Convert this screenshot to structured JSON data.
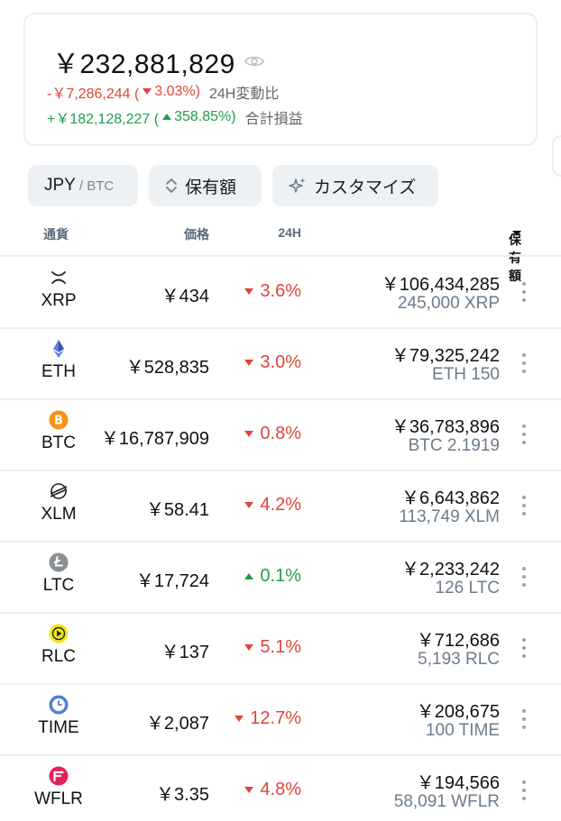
{
  "summary": {
    "total": "￥232,881,829",
    "change_24h": {
      "amount": "-￥7,286,244 (",
      "pct": "3.03%)",
      "label": "24H変動比"
    },
    "total_pl": {
      "amount": "+￥182,128,227 (",
      "pct": "358.85%)",
      "label": "合計損益"
    },
    "icon": "eye-icon"
  },
  "chips": {
    "currency_main": "JPY",
    "currency_sep": "/ BTC",
    "sort": "保有額",
    "customize": "カスタマイズ"
  },
  "table_header": {
    "currency": "通貨",
    "price": "価格",
    "change": "24H",
    "holding": "保有額"
  },
  "colors": {
    "negative": "#e0443a",
    "positive": "#1e9e4a",
    "muted": "#6b7c8c"
  },
  "rows": [
    {
      "symbol": "XRP",
      "price": "￥434",
      "change": "3.6%",
      "direction": "down",
      "value": "￥106,434,285",
      "amount": "245,000 XRP",
      "icon": "xrp-icon"
    },
    {
      "symbol": "ETH",
      "price": "￥528,835",
      "change": "3.0%",
      "direction": "down",
      "value": "￥79,325,242",
      "amount": "ETH 150",
      "icon": "eth-icon"
    },
    {
      "symbol": "BTC",
      "price": "￥16,787,909",
      "change": "0.8%",
      "direction": "down",
      "value": "￥36,783,896",
      "amount": "BTC 2.1919",
      "icon": "btc-icon"
    },
    {
      "symbol": "XLM",
      "price": "￥58.41",
      "change": "4.2%",
      "direction": "down",
      "value": "￥6,643,862",
      "amount": "113,749 XLM",
      "icon": "xlm-icon"
    },
    {
      "symbol": "LTC",
      "price": "￥17,724",
      "change": "0.1%",
      "direction": "up",
      "value": "￥2,233,242",
      "amount": "126 LTC",
      "icon": "ltc-icon"
    },
    {
      "symbol": "RLC",
      "price": "￥137",
      "change": "5.1%",
      "direction": "down",
      "value": "￥712,686",
      "amount": "5,193 RLC",
      "icon": "rlc-icon"
    },
    {
      "symbol": "TIME",
      "price": "￥2,087",
      "change": "12.7%",
      "direction": "down",
      "value": "￥208,675",
      "amount": "100 TIME",
      "icon": "time-icon"
    },
    {
      "symbol": "WFLR",
      "price": "￥3.35",
      "change": "4.8%",
      "direction": "down",
      "value": "￥194,566",
      "amount": "58,091 WFLR",
      "icon": "wflr-icon"
    }
  ]
}
